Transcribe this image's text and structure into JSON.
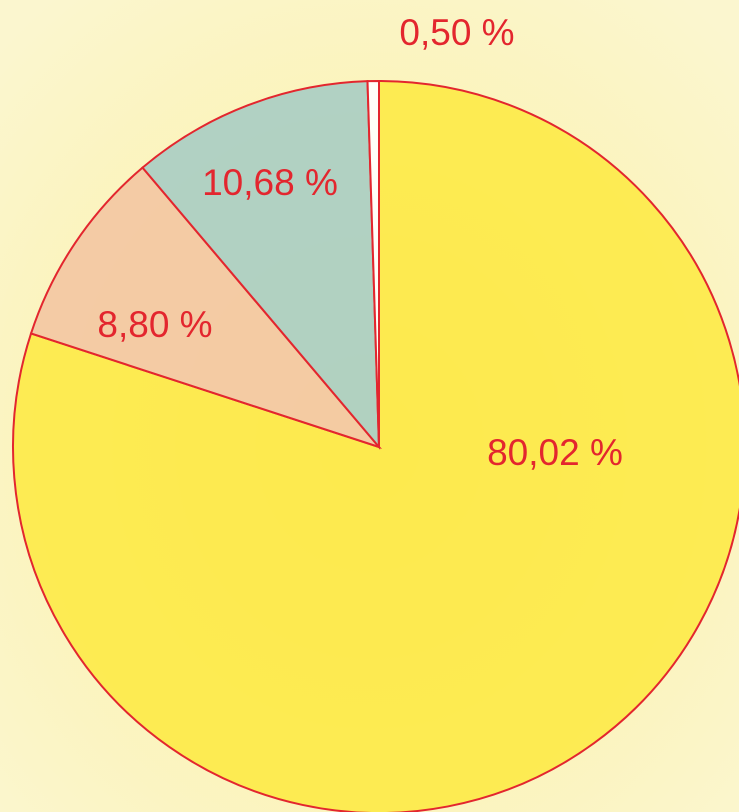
{
  "chart_data": {
    "type": "pie",
    "categories": [
      null,
      null,
      null,
      null
    ],
    "values": [
      80.02,
      8.8,
      10.68,
      0.5
    ],
    "value_labels": [
      "80,02 %",
      "8,80 %",
      "10,68 %",
      "0,50 %"
    ],
    "colors": [
      "#fde93f",
      "#f3c7a2",
      "#a8cdc3",
      "#ffffff"
    ],
    "edge_color": "#e3262e"
  }
}
